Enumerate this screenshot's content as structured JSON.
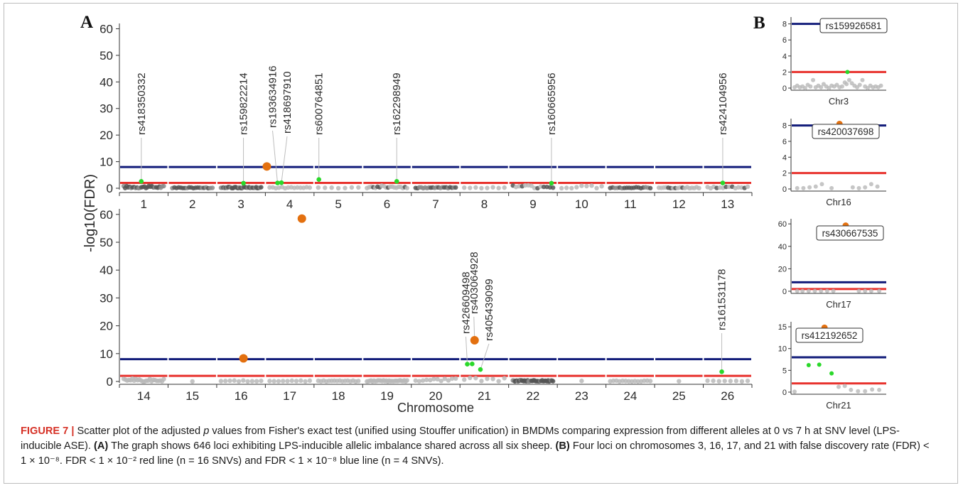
{
  "colors": {
    "blue_line": "#121c7a",
    "red_line": "#e8322d",
    "grey_point": "#b8b8b8",
    "dark_point": "#555555",
    "green_point": "#2ad82a",
    "orange_point": "#e3700f",
    "caption_accent": "#d63126"
  },
  "panel_labels": {
    "a": "A",
    "b": "B"
  },
  "axis": {
    "ylabel": "-log10(FDR)",
    "xlabel": "Chromosome"
  },
  "caption": {
    "label": "FIGURE 7 |",
    "part1": " Scatter plot of the adjusted ",
    "p_italic": "p",
    "part2": " values from Fisher's exact test (unified using Stouffer unification) in BMDMs comparing expression from different alleles at 0 vs 7 h at SNV level (LPS-inducible ASE). ",
    "a_label": "(A)",
    "part3": " The graph shows 646 loci exhibiting LPS-inducible allelic imbalance shared across all six sheep. ",
    "b_label": "(B)",
    "part4": " Four loci on chromosomes 3, 16, 17, and 21 with false discovery rate (FDR) < 1 × 10⁻⁸. FDR < 1 × 10⁻² red line (n = 16 SNVs) and FDR < 1 × 10⁻⁸ blue line (n = 4 SNVs)."
  },
  "chart_data": [
    {
      "type": "scatter",
      "panel": "A-top",
      "ylabel": "-log10(FDR)",
      "xlabel": "",
      "ylim": [
        0,
        62
      ],
      "yticks": [
        0,
        10,
        20,
        30,
        40,
        50,
        60
      ],
      "thresholds": {
        "red": 2,
        "blue": 8
      },
      "categories": [
        "1",
        "2",
        "3",
        "4",
        "5",
        "6",
        "7",
        "8",
        "9",
        "10",
        "11",
        "12",
        "13"
      ],
      "background_density": [
        {
          "chr": "1",
          "n": 28,
          "mode": "dark",
          "maxv": 0.9
        },
        {
          "chr": "2",
          "n": 20,
          "mode": "dark",
          "maxv": 0.4
        },
        {
          "chr": "3",
          "n": 34,
          "mode": "dark",
          "maxv": 0.5
        },
        {
          "chr": "4",
          "n": 14,
          "mode": "light",
          "maxv": 0.5
        },
        {
          "chr": "5",
          "n": 7,
          "mode": "light",
          "maxv": 0.3
        },
        {
          "chr": "6",
          "n": 20,
          "mode": "mixed",
          "maxv": 1.0
        },
        {
          "chr": "7",
          "n": 22,
          "mode": "dark",
          "maxv": 0.4
        },
        {
          "chr": "8",
          "n": 8,
          "mode": "light",
          "maxv": 0.4
        },
        {
          "chr": "9",
          "n": 14,
          "mode": "mixed",
          "maxv": 1.3
        },
        {
          "chr": "10",
          "n": 9,
          "mode": "light",
          "maxv": 1.0
        },
        {
          "chr": "11",
          "n": 18,
          "mode": "dark",
          "maxv": 0.4
        },
        {
          "chr": "12",
          "n": 18,
          "mode": "mixed",
          "maxv": 0.4
        },
        {
          "chr": "13",
          "n": 14,
          "mode": "mixed",
          "maxv": 0.6
        }
      ],
      "highlighted": [
        {
          "chr": "1",
          "pos": 0.45,
          "y": 2.6,
          "color": "green",
          "label": "rs418350332"
        },
        {
          "chr": "3",
          "pos": 0.55,
          "y": 1.9,
          "color": "green",
          "label": "rs159822214"
        },
        {
          "chr": "3",
          "pos": 1.03,
          "y": 8.2,
          "color": "orange",
          "label": ""
        },
        {
          "chr": "4",
          "pos": 0.25,
          "y": 2.0,
          "color": "green",
          "label": "rs193634916"
        },
        {
          "chr": "4",
          "pos": 0.33,
          "y": 2.1,
          "color": "green",
          "label": "rs418697910"
        },
        {
          "chr": "5",
          "pos": 0.1,
          "y": 3.3,
          "color": "green",
          "label": "rs600764851"
        },
        {
          "chr": "6",
          "pos": 0.7,
          "y": 2.6,
          "color": "green",
          "label": "rs162298949"
        },
        {
          "chr": "9",
          "pos": 0.88,
          "y": 1.9,
          "color": "green",
          "label": "rs160665956"
        },
        {
          "chr": "13",
          "pos": 0.4,
          "y": 2.0,
          "color": "green",
          "label": "rs424104956"
        }
      ]
    },
    {
      "type": "scatter",
      "panel": "A-bottom",
      "ylabel": "-log10(FDR)",
      "xlabel": "Chromosome",
      "ylim": [
        0,
        62
      ],
      "yticks": [
        0,
        10,
        20,
        30,
        40,
        50,
        60
      ],
      "thresholds": {
        "red": 2,
        "blue": 8
      },
      "categories": [
        "14",
        "15",
        "16",
        "17",
        "18",
        "19",
        "20",
        "21",
        "22",
        "23",
        "24",
        "25",
        "26"
      ],
      "background_density": [
        {
          "chr": "14",
          "n": 24,
          "mode": "light",
          "maxv": 1.1
        },
        {
          "chr": "15",
          "n": 1,
          "mode": "light",
          "maxv": 0.2
        },
        {
          "chr": "16",
          "n": 10,
          "mode": "light",
          "maxv": 0.4
        },
        {
          "chr": "17",
          "n": 10,
          "mode": "light",
          "maxv": 0.3
        },
        {
          "chr": "18",
          "n": 16,
          "mode": "light",
          "maxv": 0.3
        },
        {
          "chr": "19",
          "n": 30,
          "mode": "light",
          "maxv": 0.4
        },
        {
          "chr": "20",
          "n": 12,
          "mode": "light",
          "maxv": 1.2
        },
        {
          "chr": "21",
          "n": 8,
          "mode": "light",
          "maxv": 1.3
        },
        {
          "chr": "22",
          "n": 42,
          "mode": "dark",
          "maxv": 0.5
        },
        {
          "chr": "23",
          "n": 1,
          "mode": "light",
          "maxv": 0.2
        },
        {
          "chr": "24",
          "n": 14,
          "mode": "light",
          "maxv": 0.3
        },
        {
          "chr": "25",
          "n": 1,
          "mode": "light",
          "maxv": 0.2
        },
        {
          "chr": "26",
          "n": 8,
          "mode": "light",
          "maxv": 0.4
        }
      ],
      "highlighted": [
        {
          "chr": "16",
          "pos": 0.55,
          "y": 8.3,
          "color": "orange",
          "label": ""
        },
        {
          "chr": "17",
          "pos": 0.75,
          "y": 58.5,
          "color": "orange",
          "label": ""
        },
        {
          "chr": "21",
          "pos": 0.15,
          "y": 6.2,
          "color": "green",
          "label": "rs426609498"
        },
        {
          "chr": "21",
          "pos": 0.25,
          "y": 6.3,
          "color": "green",
          "label": ""
        },
        {
          "chr": "21",
          "pos": 0.3,
          "y": 14.8,
          "color": "orange",
          "label": "rs403064928"
        },
        {
          "chr": "21",
          "pos": 0.42,
          "y": 4.3,
          "color": "green",
          "label": "rs405439099"
        },
        {
          "chr": "26",
          "pos": 0.38,
          "y": 3.5,
          "color": "green",
          "label": "rs161531178"
        }
      ]
    },
    {
      "type": "scatter",
      "panel": "B-chr3",
      "xlabel": "Chr3",
      "ylabel": "",
      "ylim": [
        0,
        8.5
      ],
      "yticks": [
        0,
        2,
        4,
        6,
        8
      ],
      "thresholds": {
        "red": 2,
        "blue": 8
      },
      "box_label": "rs159926581",
      "points": [
        {
          "x": 0.0,
          "y": 0.1,
          "c": "grey"
        },
        {
          "x": 0.3,
          "y": 0.3,
          "c": "grey"
        },
        {
          "x": 0.6,
          "y": 0.1,
          "c": "grey"
        },
        {
          "x": 0.9,
          "y": 0.2,
          "c": "grey"
        },
        {
          "x": 1.2,
          "y": 0.0,
          "c": "grey"
        },
        {
          "x": 1.5,
          "y": 0.4,
          "c": "grey"
        },
        {
          "x": 1.8,
          "y": 0.2,
          "c": "grey"
        },
        {
          "x": 2.1,
          "y": 1.0,
          "c": "grey"
        },
        {
          "x": 2.4,
          "y": 0.1,
          "c": "grey"
        },
        {
          "x": 2.7,
          "y": 0.3,
          "c": "grey"
        },
        {
          "x": 3.0,
          "y": 0.1,
          "c": "grey"
        },
        {
          "x": 3.3,
          "y": 0.5,
          "c": "grey"
        },
        {
          "x": 3.6,
          "y": 0.2,
          "c": "grey"
        },
        {
          "x": 3.9,
          "y": 0.0,
          "c": "grey"
        },
        {
          "x": 4.2,
          "y": 0.3,
          "c": "grey"
        },
        {
          "x": 4.5,
          "y": 0.2,
          "c": "grey"
        },
        {
          "x": 4.8,
          "y": 0.4,
          "c": "grey"
        },
        {
          "x": 5.1,
          "y": 0.1,
          "c": "grey"
        },
        {
          "x": 5.4,
          "y": 0.2,
          "c": "grey"
        },
        {
          "x": 5.7,
          "y": 0.7,
          "c": "grey"
        },
        {
          "x": 5.9,
          "y": 0.5,
          "c": "grey"
        },
        {
          "x": 6.2,
          "y": 1.0,
          "c": "grey"
        },
        {
          "x": 6.5,
          "y": 0.6,
          "c": "grey"
        },
        {
          "x": 6.8,
          "y": 0.3,
          "c": "grey"
        },
        {
          "x": 7.1,
          "y": 0.1,
          "c": "grey"
        },
        {
          "x": 7.4,
          "y": 0.4,
          "c": "grey"
        },
        {
          "x": 7.7,
          "y": 1.0,
          "c": "grey"
        },
        {
          "x": 8.0,
          "y": 0.2,
          "c": "grey"
        },
        {
          "x": 8.3,
          "y": 0.0,
          "c": "grey"
        },
        {
          "x": 8.6,
          "y": 0.3,
          "c": "grey"
        },
        {
          "x": 8.9,
          "y": 0.1,
          "c": "grey"
        },
        {
          "x": 9.2,
          "y": 0.2,
          "c": "grey"
        },
        {
          "x": 9.5,
          "y": 0.1,
          "c": "grey"
        },
        {
          "x": 9.8,
          "y": 0.3,
          "c": "grey"
        },
        {
          "x": 6.0,
          "y": 2.0,
          "c": "green"
        },
        {
          "x": 10.0,
          "y": 8.3,
          "c": "orange"
        }
      ]
    },
    {
      "type": "scatter",
      "panel": "B-chr16",
      "xlabel": "Chr16",
      "ylabel": "",
      "ylim": [
        0,
        8.5
      ],
      "yticks": [
        0,
        2,
        4,
        6,
        8
      ],
      "thresholds": {
        "red": 2,
        "blue": 8
      },
      "box_label": "rs420037698",
      "points": [
        {
          "x": 0.3,
          "y": 0.1,
          "c": "grey"
        },
        {
          "x": 1.0,
          "y": 0.1,
          "c": "grey"
        },
        {
          "x": 1.7,
          "y": 0.2,
          "c": "grey"
        },
        {
          "x": 2.4,
          "y": 0.3,
          "c": "grey"
        },
        {
          "x": 3.1,
          "y": 0.6,
          "c": "grey"
        },
        {
          "x": 4.2,
          "y": 0.1,
          "c": "grey"
        },
        {
          "x": 6.6,
          "y": 0.2,
          "c": "grey"
        },
        {
          "x": 7.3,
          "y": 0.1,
          "c": "grey"
        },
        {
          "x": 8.0,
          "y": 0.2,
          "c": "grey"
        },
        {
          "x": 8.7,
          "y": 0.6,
          "c": "grey"
        },
        {
          "x": 9.4,
          "y": 0.3,
          "c": "grey"
        },
        {
          "x": 5.1,
          "y": 8.2,
          "c": "orange"
        }
      ]
    },
    {
      "type": "scatter",
      "panel": "B-chr17",
      "xlabel": "Chr17",
      "ylabel": "",
      "ylim": [
        0,
        62
      ],
      "yticks": [
        0,
        20,
        40,
        60
      ],
      "thresholds": {
        "red": 2,
        "blue": 8
      },
      "box_label": "rs430667535",
      "points": [
        {
          "x": 0.3,
          "y": 0.2,
          "c": "grey"
        },
        {
          "x": 0.9,
          "y": 0.2,
          "c": "grey"
        },
        {
          "x": 1.6,
          "y": 0.2,
          "c": "grey"
        },
        {
          "x": 2.3,
          "y": 0.2,
          "c": "grey"
        },
        {
          "x": 3.0,
          "y": 0.2,
          "c": "grey"
        },
        {
          "x": 3.7,
          "y": 0.2,
          "c": "grey"
        },
        {
          "x": 4.4,
          "y": 0.2,
          "c": "grey"
        },
        {
          "x": 7.3,
          "y": 0.2,
          "c": "grey"
        },
        {
          "x": 8.0,
          "y": 0.2,
          "c": "grey"
        },
        {
          "x": 8.7,
          "y": 0.2,
          "c": "grey"
        },
        {
          "x": 9.6,
          "y": 0.2,
          "c": "grey"
        },
        {
          "x": 5.8,
          "y": 58.5,
          "c": "orange"
        }
      ]
    },
    {
      "type": "scatter",
      "panel": "B-chr21",
      "xlabel": "Chr21",
      "ylabel": "",
      "ylim": [
        0,
        15.5
      ],
      "yticks": [
        0,
        5,
        10,
        15
      ],
      "thresholds": {
        "red": 2,
        "blue": 8
      },
      "box_label": "rs412192652",
      "points": [
        {
          "x": 0.0,
          "y": 0.1,
          "c": "grey"
        },
        {
          "x": 5.0,
          "y": 1.2,
          "c": "grey"
        },
        {
          "x": 5.7,
          "y": 1.4,
          "c": "grey"
        },
        {
          "x": 6.4,
          "y": 0.5,
          "c": "grey"
        },
        {
          "x": 7.2,
          "y": 0.2,
          "c": "grey"
        },
        {
          "x": 8.0,
          "y": 0.2,
          "c": "grey"
        },
        {
          "x": 8.8,
          "y": 0.6,
          "c": "grey"
        },
        {
          "x": 9.6,
          "y": 0.5,
          "c": "grey"
        },
        {
          "x": 1.6,
          "y": 6.2,
          "c": "green"
        },
        {
          "x": 2.8,
          "y": 6.3,
          "c": "green"
        },
        {
          "x": 4.2,
          "y": 4.3,
          "c": "green"
        },
        {
          "x": 3.4,
          "y": 14.8,
          "c": "orange"
        }
      ]
    }
  ]
}
